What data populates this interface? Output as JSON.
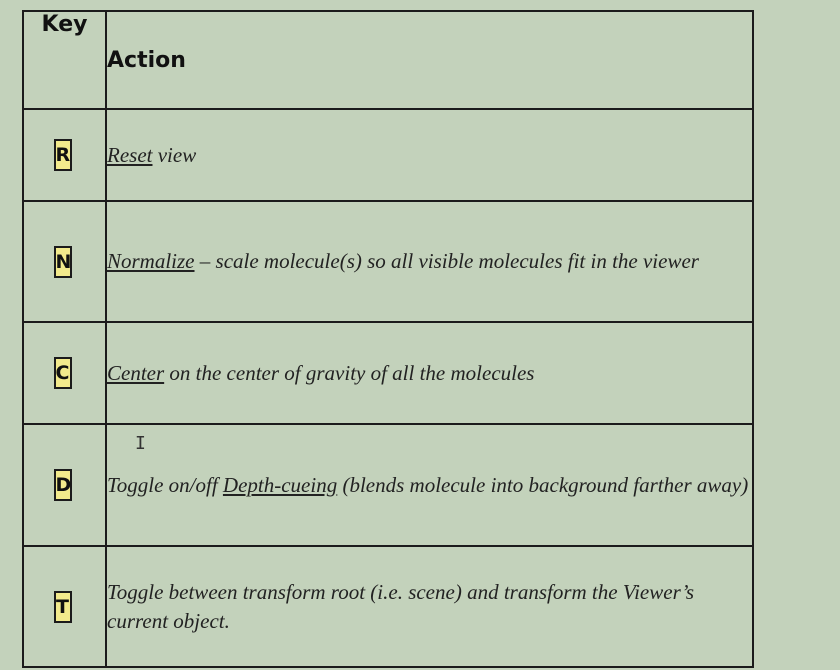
{
  "table": {
    "header": {
      "key": "Key",
      "action": "Action"
    },
    "rows": [
      {
        "key": "R",
        "term": "Reset",
        "rest": " view"
      },
      {
        "key": "N",
        "term": "Normalize",
        "rest": " – scale molecule(s) so all visible molecules fit in the viewer"
      },
      {
        "key": "C",
        "term": "Center",
        "rest": " on the center of gravity of all the molecules"
      },
      {
        "key": "D",
        "pre": "Toggle on/off ",
        "term": "Depth-cueing",
        "rest": " (blends molecule into background farther away)"
      },
      {
        "key": "T",
        "text": "Toggle between transform root (i.e. scene) and transform the Viewer’s current object."
      }
    ]
  },
  "cursor": {
    "icon": "text-cursor-icon",
    "glyph": "I"
  }
}
